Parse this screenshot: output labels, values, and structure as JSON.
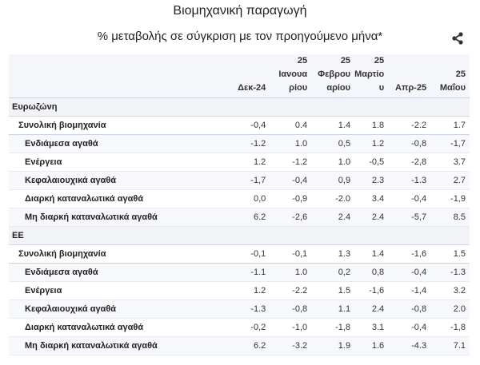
{
  "title": "Βιομηχανική παραγωγή",
  "subtitle": "% μεταβολής σε σύγκριση με τον προηγούμενο μήνα*",
  "share_icon": "share-icon",
  "columns": [
    [
      "Δεκ-24"
    ],
    [
      "25",
      "Ιανουα",
      "ρίου"
    ],
    [
      "25",
      "Φεβρου",
      "αρίου"
    ],
    [
      "25",
      "Μαρτίο",
      "υ"
    ],
    [
      "Απρ-25"
    ],
    [
      "25",
      "Μαΐου"
    ]
  ],
  "groups": [
    {
      "name": "Ευρωζώνη",
      "rows": [
        {
          "label": "Συνολική βιομηχανία",
          "values": [
            "-0,4",
            "0.4",
            "1.4",
            "1.8",
            "-2.2",
            "1.7"
          ]
        },
        {
          "label": "Ενδιάμεσα αγαθά",
          "values": [
            "-1.2",
            "1.0",
            "0,5",
            "1.2",
            "-0,8",
            "-1,7"
          ]
        },
        {
          "label": "Ενέργεια",
          "values": [
            "1.2",
            "-1.2",
            "1.0",
            "-0,5",
            "-2,8",
            "3.7"
          ]
        },
        {
          "label": "Κεφαλαιουχικά αγαθά",
          "values": [
            "-1,7",
            "-0,4",
            "0,9",
            "2.3",
            "-1.3",
            "2.7"
          ]
        },
        {
          "label": "Διαρκή καταναλωτικά αγαθά",
          "values": [
            "0,0",
            "-0,9",
            "-2.0",
            "3.4",
            "-0,4",
            "-1,9"
          ]
        },
        {
          "label": "Μη διαρκή καταναλωτικά αγαθά",
          "values": [
            "6.2",
            "-2,6",
            "2.4",
            "2.4",
            "-5,7",
            "8.5"
          ]
        }
      ]
    },
    {
      "name": "ΕΕ",
      "rows": [
        {
          "label": "Συνολική βιομηχανία",
          "values": [
            "-0,1",
            "-0,1",
            "1.3",
            "1.4",
            "-1,6",
            "1.5"
          ]
        },
        {
          "label": "Ενδιάμεσα αγαθά",
          "values": [
            "-1.1",
            "1.0",
            "0,2",
            "0,8",
            "-0,4",
            "-1.3"
          ]
        },
        {
          "label": "Ενέργεια",
          "values": [
            "1.2",
            "-2.2",
            "1.5",
            "-1,6",
            "-1,4",
            "3.2"
          ]
        },
        {
          "label": "Κεφαλαιουχικά αγαθά",
          "values": [
            "-1.3",
            "-0,8",
            "1.1",
            "2.4",
            "-0,8",
            "2.0"
          ]
        },
        {
          "label": "Διαρκή καταναλωτικά αγαθά",
          "values": [
            "-0,2",
            "-1,0",
            "-1,8",
            "3.1",
            "-0,4",
            "-1,8"
          ]
        },
        {
          "label": "Μη διαρκή καταναλωτικά αγαθά",
          "values": [
            "6.2",
            "-3.2",
            "1.9",
            "1.6",
            "-4.3",
            "7.1"
          ]
        }
      ]
    }
  ]
}
